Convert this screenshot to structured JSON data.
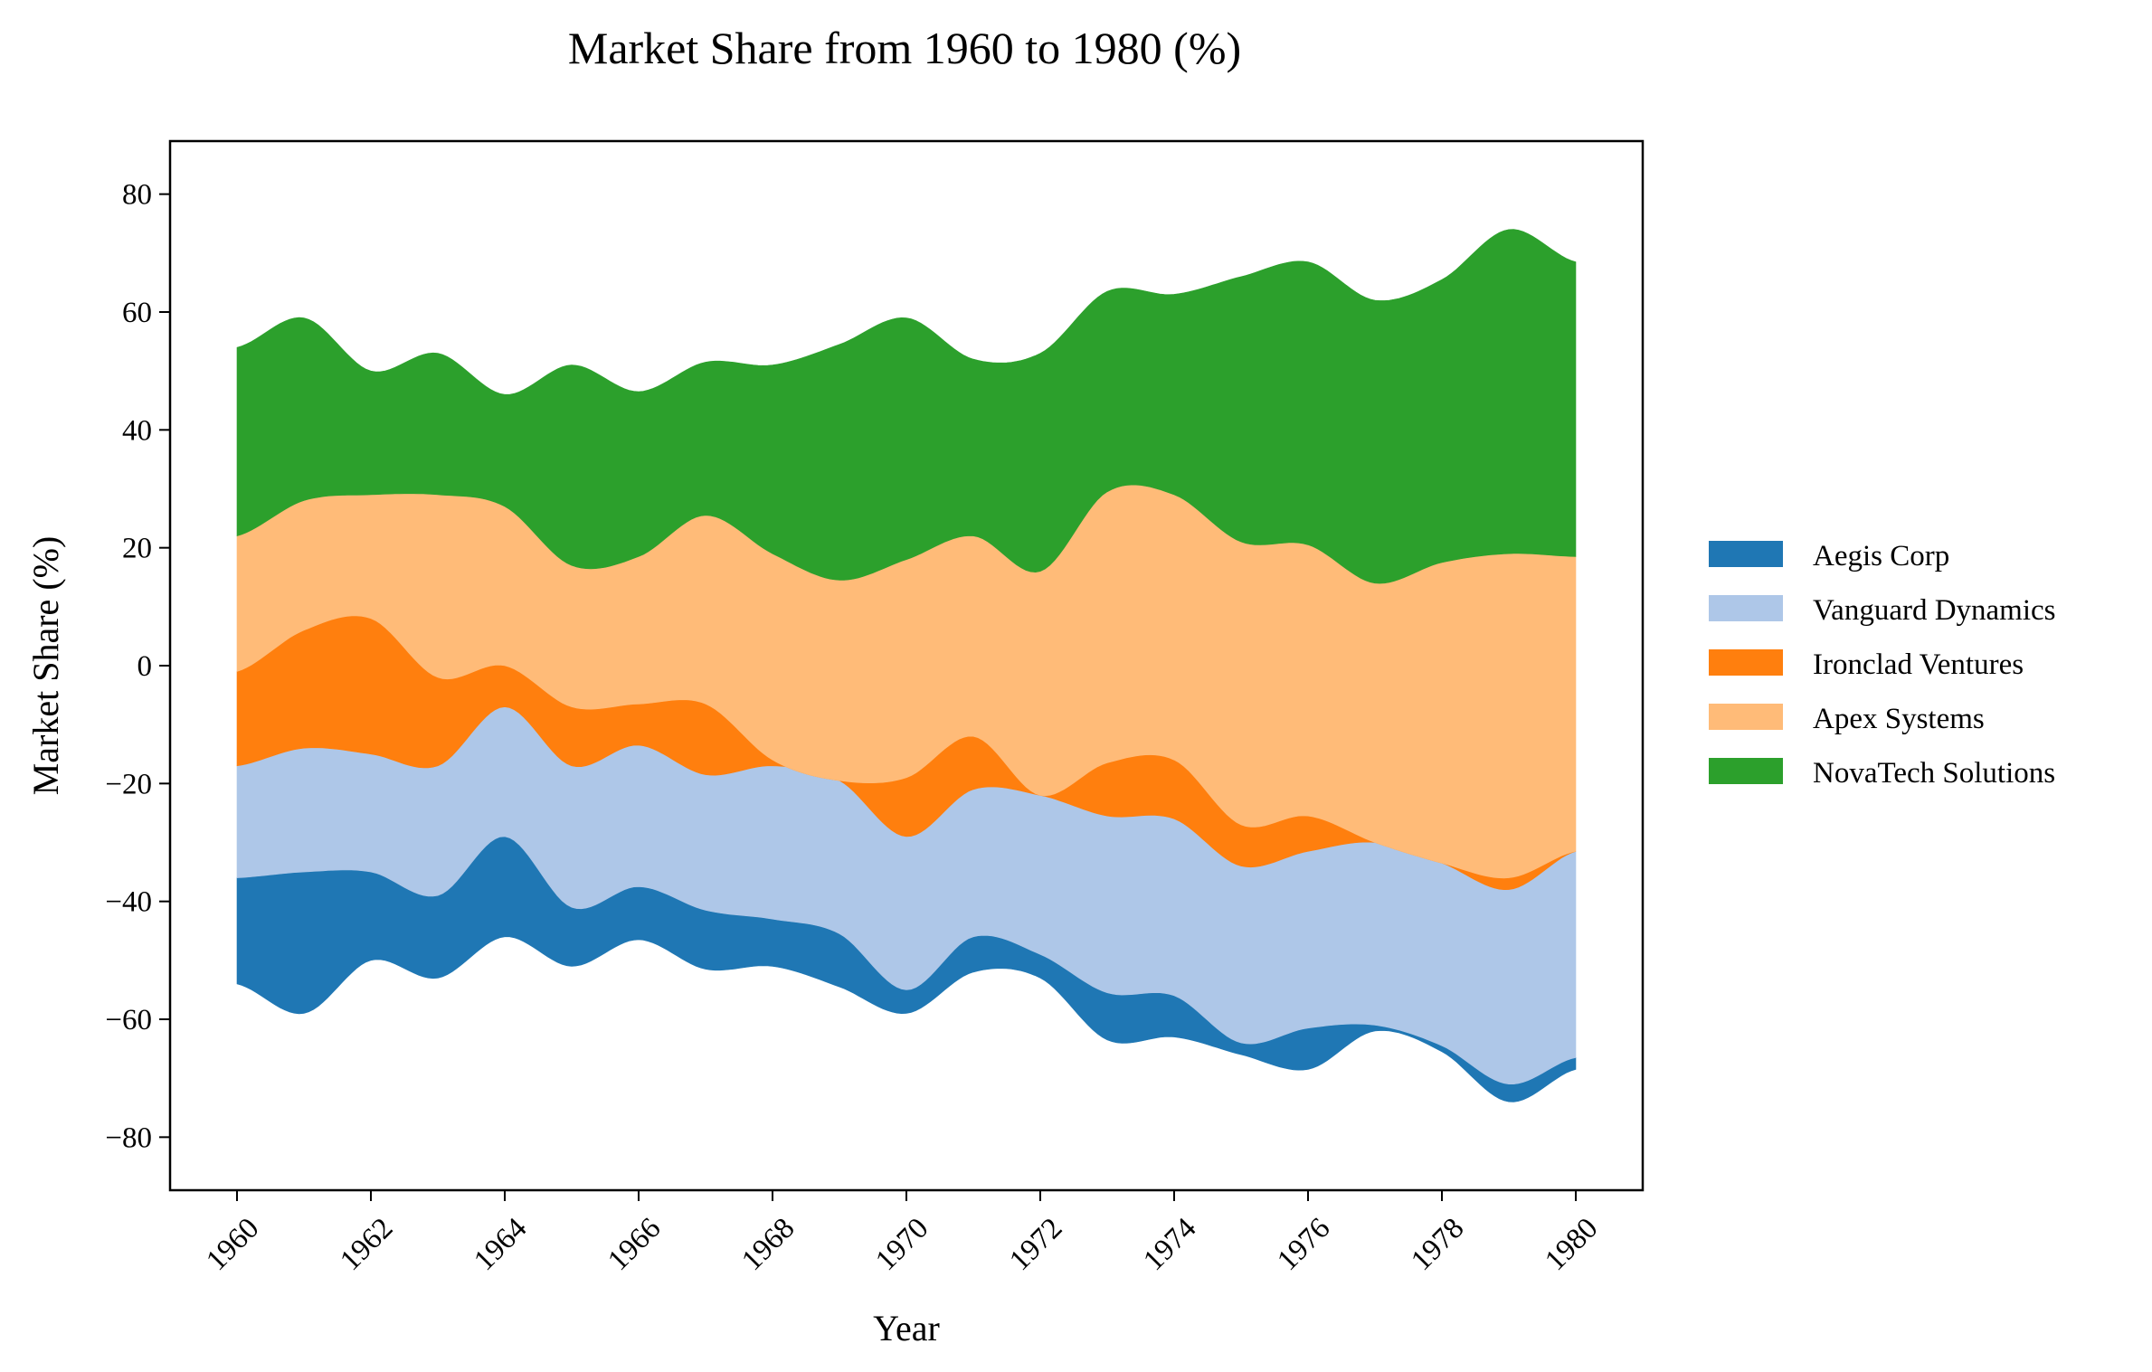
{
  "chart_data": {
    "type": "area",
    "subtype": "streamgraph",
    "title": "Market Share from 1960 to 1980 (%)",
    "xlabel": "Year",
    "ylabel": "Market Share (%)",
    "xlim": [
      1959,
      1981
    ],
    "ylim": [
      -89,
      89
    ],
    "x_ticks": [
      1960,
      1962,
      1964,
      1966,
      1968,
      1970,
      1972,
      1974,
      1976,
      1978,
      1980
    ],
    "x_tick_labels": [
      "1960",
      "1962",
      "1964",
      "1966",
      "1968",
      "1970",
      "1972",
      "1974",
      "1976",
      "1978",
      "1980"
    ],
    "y_ticks": [
      -80,
      -60,
      -40,
      -20,
      0,
      20,
      40,
      60,
      80
    ],
    "y_tick_labels": [
      "−80",
      "−60",
      "−40",
      "−20",
      "0",
      "20",
      "40",
      "60",
      "80"
    ],
    "grid": false,
    "legend_position": "right",
    "x": [
      1960,
      1961,
      1962,
      1963,
      1964,
      1965,
      1966,
      1967,
      1968,
      1969,
      1970,
      1971,
      1972,
      1973,
      1974,
      1975,
      1976,
      1977,
      1978,
      1979,
      1980
    ],
    "series": [
      {
        "name": "Aegis Corp",
        "color": "#1f77b4",
        "values": [
          18,
          24,
          15,
          14,
          17,
          10,
          9,
          10,
          8,
          9,
          4,
          6,
          4,
          8,
          7,
          2,
          7,
          1,
          1,
          3,
          2
        ]
      },
      {
        "name": "Vanguard Dynamics",
        "color": "#aec7e8",
        "values": [
          19,
          21,
          20,
          22,
          22,
          24,
          24,
          23,
          26,
          26,
          26,
          25,
          27,
          30,
          30,
          30,
          30,
          31,
          31,
          33,
          35
        ]
      },
      {
        "name": "Ironclad Ventures",
        "color": "#ff7f0e",
        "values": [
          16,
          20,
          23,
          15,
          7,
          10,
          7,
          12,
          1,
          0,
          10,
          9,
          0,
          9,
          10,
          7,
          6,
          0,
          0,
          2,
          0
        ]
      },
      {
        "name": "Apex Systems",
        "color": "#ffbb78",
        "values": [
          23,
          22,
          21,
          31,
          27,
          24,
          25,
          32,
          35,
          34,
          37,
          34,
          38,
          46,
          45,
          48,
          46,
          44,
          51,
          55,
          50
        ]
      },
      {
        "name": "NovaTech Solutions",
        "color": "#2ca02c",
        "values": [
          32,
          31,
          21,
          24,
          19,
          34,
          28,
          26,
          32,
          40,
          41,
          30,
          37,
          34,
          34,
          45,
          48,
          48,
          48,
          55,
          50
        ]
      }
    ]
  }
}
